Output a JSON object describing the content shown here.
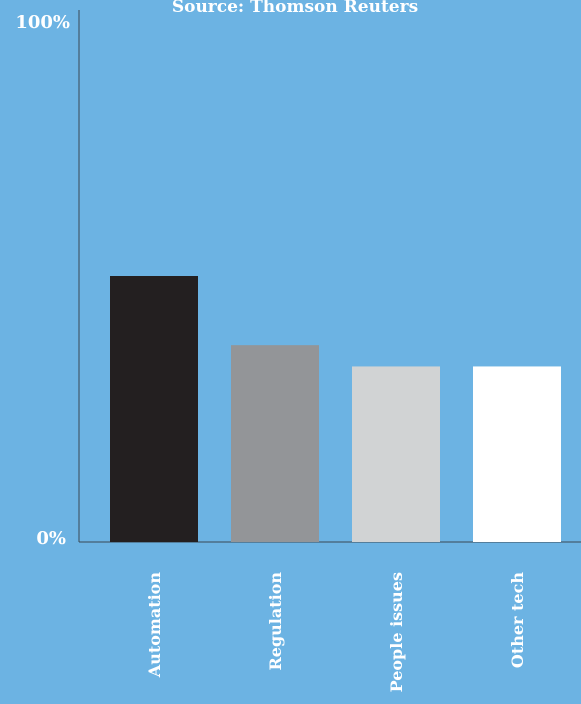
{
  "background_color": "#6cb3e3",
  "chart_data": {
    "type": "bar",
    "title": "Source: Thomson Reuters",
    "categories": [
      "Automation",
      "Regulation",
      "People issues",
      "Other tech"
    ],
    "values": [
      50,
      37,
      33,
      33
    ],
    "bar_colors": [
      "#231f20",
      "#939598",
      "#d1d3d4",
      "#ffffff"
    ],
    "ylim": [
      0,
      100
    ],
    "yticks": [
      "0%",
      "100%"
    ],
    "xlabel": "",
    "ylabel": "",
    "grid": false
  }
}
